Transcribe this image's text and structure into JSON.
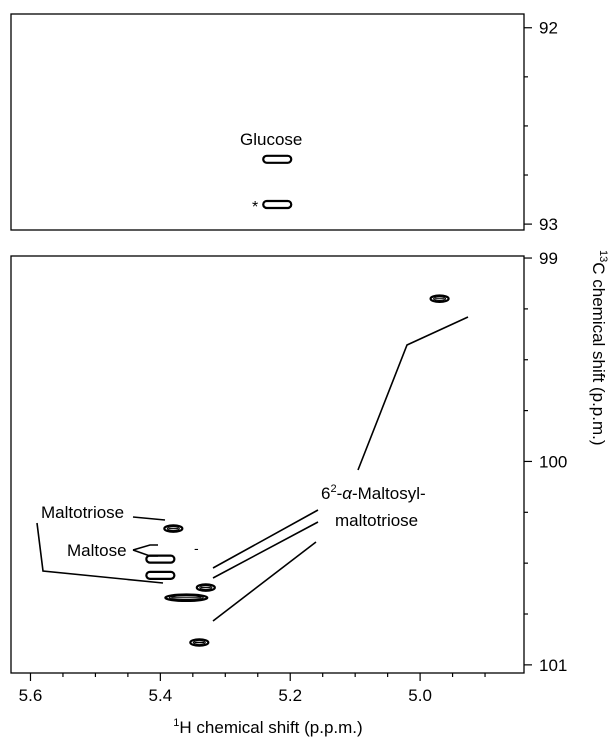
{
  "chart_data": {
    "type": "contour",
    "x_axis": {
      "label_prefix_sup": "1",
      "label_text": "H chemical shift (p.p.m.)",
      "reversed": true,
      "range": [
        5.63,
        4.84
      ],
      "major_ticks": [
        5.6,
        5.4,
        5.2,
        5.0
      ],
      "tick_labels": [
        "5.6",
        "5.4",
        "5.2",
        "5.0"
      ],
      "minor_step": 0.05
    },
    "y_axis": {
      "label_prefix_sup": "13",
      "label_text": "C chemical shift (p.p.m.)",
      "reversed": true,
      "panels": [
        {
          "name": "top",
          "range": [
            91.93,
            93.03
          ],
          "major_ticks": [
            92,
            93
          ],
          "tick_labels": [
            "92",
            "93"
          ],
          "minor_step": 0.25
        },
        {
          "name": "bottom",
          "range": [
            98.99,
            101.04
          ],
          "major_ticks": [
            99,
            100,
            101
          ],
          "tick_labels": [
            "99",
            "100",
            "101"
          ],
          "minor_step": 0.25
        }
      ]
    },
    "peaks": [
      {
        "id": "glucose-1",
        "panel": "top",
        "x": 5.22,
        "y": 92.67,
        "style": "ring"
      },
      {
        "id": "glucose-2",
        "panel": "top",
        "x": 5.22,
        "y": 92.9,
        "style": "ring"
      },
      {
        "id": "tetra-1",
        "panel": "bottom",
        "x": 4.97,
        "y": 99.2,
        "style": "dense"
      },
      {
        "id": "maltotriose",
        "panel": "bottom",
        "x": 5.38,
        "y": 100.33,
        "style": "dense"
      },
      {
        "id": "maltose-1",
        "panel": "bottom",
        "x": 5.4,
        "y": 100.48,
        "style": "ring"
      },
      {
        "id": "maltose-2",
        "panel": "bottom",
        "x": 5.4,
        "y": 100.56,
        "style": "ring"
      },
      {
        "id": "tetra-2",
        "panel": "bottom",
        "x": 5.33,
        "y": 100.62,
        "style": "dense"
      },
      {
        "id": "overlap",
        "panel": "bottom",
        "x": 5.36,
        "y": 100.67,
        "style": "dense-wide"
      },
      {
        "id": "tetra-3",
        "panel": "bottom",
        "x": 5.34,
        "y": 100.89,
        "style": "dense"
      }
    ],
    "annotations": {
      "glucose": "Glucose",
      "asterisk": "*",
      "maltotriose": "Maltotriose",
      "maltose": "Maltose",
      "tetrasaccharide_prefix": "6",
      "tetrasaccharide_sup": "2",
      "tetrasaccharide_dash": "-",
      "tetrasaccharide_alpha": "α",
      "tetrasaccharide_line1_rest": "-Maltosyl-",
      "tetrasaccharide_line2": "maltotriose",
      "maltose_dash": "-"
    }
  }
}
